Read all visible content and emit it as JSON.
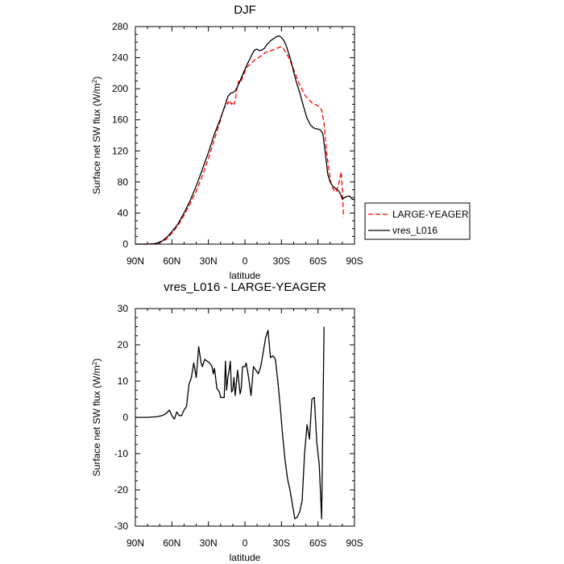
{
  "chart_data": [
    {
      "type": "line",
      "title": "DJF",
      "xlabel": "latitude",
      "ylabel_main": "Surface net SW flux (W/m",
      "ylabel_sup": "2",
      "ylabel_end": ")",
      "xlim": [
        -90,
        90
      ],
      "ylim": [
        0,
        280
      ],
      "x_ticks": [
        {
          "value": -90,
          "label": "90N"
        },
        {
          "value": -60,
          "label": "60N"
        },
        {
          "value": -30,
          "label": "30N"
        },
        {
          "value": 0,
          "label": "0"
        },
        {
          "value": 30,
          "label": "30S"
        },
        {
          "value": 60,
          "label": "60S"
        },
        {
          "value": 90,
          "label": "90S"
        }
      ],
      "y_ticks": [
        0,
        40,
        80,
        120,
        160,
        200,
        240,
        280
      ],
      "legend_position": "outside-right",
      "series": [
        {
          "name": "LARGE-YEAGER",
          "color": "#ff0000",
          "dash": true,
          "points": [
            [
              -90,
              0
            ],
            [
              -80,
              0
            ],
            [
              -75,
              0.5
            ],
            [
              -72,
              1
            ],
            [
              -68,
              3
            ],
            [
              -64,
              7
            ],
            [
              -60,
              14
            ],
            [
              -55,
              24
            ],
            [
              -50,
              37
            ],
            [
              -45,
              52
            ],
            [
              -40,
              68
            ],
            [
              -35,
              88
            ],
            [
              -30,
              110
            ],
            [
              -25,
              135
            ],
            [
              -20,
              160
            ],
            [
              -18,
              172
            ],
            [
              -16,
              178
            ],
            [
              -15,
              186
            ],
            [
              -14,
              180
            ],
            [
              -13,
              185
            ],
            [
              -12,
              183
            ],
            [
              -11,
              180
            ],
            [
              -10,
              183
            ],
            [
              -9,
              180
            ],
            [
              -8,
              184
            ],
            [
              -7,
              195
            ],
            [
              -6,
              205
            ],
            [
              -5,
              210
            ],
            [
              -4,
              208
            ],
            [
              -3,
              210
            ],
            [
              -2,
              215
            ],
            [
              0,
              222
            ],
            [
              2,
              228
            ],
            [
              5,
              233
            ],
            [
              8,
              237
            ],
            [
              11,
              240
            ],
            [
              14,
              243
            ],
            [
              17,
              247
            ],
            [
              20,
              248
            ],
            [
              23,
              250
            ],
            [
              26,
              252
            ],
            [
              29,
              254
            ],
            [
              31,
              253
            ],
            [
              33,
              248
            ],
            [
              36,
              240
            ],
            [
              40,
              225
            ],
            [
              45,
              205
            ],
            [
              50,
              190
            ],
            [
              55,
              182
            ],
            [
              60,
              178
            ],
            [
              63,
              173
            ],
            [
              65,
              155
            ],
            [
              67,
              120
            ],
            [
              69,
              95
            ],
            [
              71,
              75
            ],
            [
              73,
              70
            ],
            [
              75,
              67
            ],
            [
              77,
              77
            ],
            [
              79,
              93
            ],
            [
              80,
              70
            ],
            [
              81,
              35
            ]
          ]
        },
        {
          "name": "vres_L016",
          "color": "#000000",
          "dash": false,
          "points": [
            [
              -90,
              0
            ],
            [
              -80,
              0
            ],
            [
              -75,
              0.5
            ],
            [
              -72,
              1.5
            ],
            [
              -68,
              4
            ],
            [
              -64,
              9
            ],
            [
              -60,
              16
            ],
            [
              -55,
              26
            ],
            [
              -50,
              40
            ],
            [
              -45,
              56
            ],
            [
              -40,
              75
            ],
            [
              -35,
              96
            ],
            [
              -30,
              118
            ],
            [
              -25,
              142
            ],
            [
              -20,
              162
            ],
            [
              -16,
              180
            ],
            [
              -14,
              190
            ],
            [
              -12,
              194
            ],
            [
              -10,
              195
            ],
            [
              -8,
              197
            ],
            [
              -6,
              203
            ],
            [
              -4,
              210
            ],
            [
              -2,
              218
            ],
            [
              0,
              225
            ],
            [
              2,
              232
            ],
            [
              4,
              238
            ],
            [
              6,
              245
            ],
            [
              8,
              250
            ],
            [
              10,
              251
            ],
            [
              12,
              249
            ],
            [
              14,
              250
            ],
            [
              16,
              252
            ],
            [
              18,
              257
            ],
            [
              20,
              260
            ],
            [
              22,
              263
            ],
            [
              24,
              265
            ],
            [
              26,
              267
            ],
            [
              28,
              268
            ],
            [
              30,
              266
            ],
            [
              32,
              262
            ],
            [
              34,
              255
            ],
            [
              36,
              245
            ],
            [
              38,
              235
            ],
            [
              40,
              222
            ],
            [
              42,
              210
            ],
            [
              45,
              195
            ],
            [
              48,
              178
            ],
            [
              51,
              162
            ],
            [
              54,
              153
            ],
            [
              57,
              149
            ],
            [
              60,
              148
            ],
            [
              62,
              147
            ],
            [
              64,
              142
            ],
            [
              66,
              118
            ],
            [
              68,
              90
            ],
            [
              70,
              80
            ],
            [
              72,
              75
            ],
            [
              74,
              72
            ],
            [
              76,
              70
            ],
            [
              78,
              66
            ],
            [
              80,
              58
            ],
            [
              83,
              61
            ],
            [
              86,
              62
            ],
            [
              88,
              58
            ],
            [
              90,
              57
            ]
          ]
        }
      ]
    },
    {
      "type": "line",
      "title": "vres_L016 - LARGE-YEAGER",
      "xlabel": "latitude",
      "ylabel_main": "Surface net SW flux (W/m",
      "ylabel_sup": "2",
      "ylabel_end": ")",
      "xlim": [
        -90,
        90
      ],
      "ylim": [
        -30,
        30
      ],
      "x_ticks": [
        {
          "value": -90,
          "label": "90N"
        },
        {
          "value": -60,
          "label": "60N"
        },
        {
          "value": -30,
          "label": "30N"
        },
        {
          "value": 0,
          "label": "0"
        },
        {
          "value": 30,
          "label": "30S"
        },
        {
          "value": 60,
          "label": "60S"
        },
        {
          "value": 90,
          "label": "90S"
        }
      ],
      "y_ticks": [
        -30,
        -20,
        -10,
        0,
        10,
        20,
        30
      ],
      "series": [
        {
          "name": "vres_L016 - LARGE-YEAGER",
          "color": "#000000",
          "dash": false,
          "points": [
            [
              -90,
              0
            ],
            [
              -80,
              0
            ],
            [
              -72,
              0.2
            ],
            [
              -68,
              0.5
            ],
            [
              -65,
              1
            ],
            [
              -62,
              2
            ],
            [
              -60,
              0.5
            ],
            [
              -58,
              -0.5
            ],
            [
              -56,
              1.5
            ],
            [
              -54,
              0.5
            ],
            [
              -52,
              0.5
            ],
            [
              -50,
              2
            ],
            [
              -48,
              3
            ],
            [
              -46,
              9
            ],
            [
              -44,
              11
            ],
            [
              -42,
              15
            ],
            [
              -40,
              11
            ],
            [
              -38,
              19.5
            ],
            [
              -36,
              15
            ],
            [
              -35,
              14
            ],
            [
              -33,
              16
            ],
            [
              -31,
              15.5
            ],
            [
              -29,
              15
            ],
            [
              -27,
              14
            ],
            [
              -26,
              12
            ],
            [
              -25,
              13.5
            ],
            [
              -23,
              8
            ],
            [
              -21,
              7
            ],
            [
              -20,
              5.5
            ],
            [
              -18,
              5.5
            ],
            [
              -17,
              5.5
            ],
            [
              -16,
              15.5
            ],
            [
              -15,
              7.5
            ],
            [
              -14,
              11
            ],
            [
              -13,
              13
            ],
            [
              -12,
              15.5
            ],
            [
              -11,
              7
            ],
            [
              -10,
              7.5
            ],
            [
              -9,
              11
            ],
            [
              -8,
              6
            ],
            [
              -6,
              13
            ],
            [
              -4,
              6.5
            ],
            [
              -3,
              8
            ],
            [
              -2,
              14
            ],
            [
              0,
              14
            ],
            [
              1,
              15
            ],
            [
              3,
              11
            ],
            [
              5,
              6
            ],
            [
              7,
              14
            ],
            [
              9,
              13
            ],
            [
              11,
              12
            ],
            [
              13,
              14
            ],
            [
              15,
              18
            ],
            [
              17,
              22
            ],
            [
              19,
              24
            ],
            [
              21,
              16.5
            ],
            [
              23,
              17
            ],
            [
              25,
              16
            ],
            [
              27,
              10
            ],
            [
              29,
              3
            ],
            [
              31,
              -5
            ],
            [
              33,
              -12
            ],
            [
              35,
              -17
            ],
            [
              37,
              -20
            ],
            [
              39,
              -24
            ],
            [
              41,
              -28
            ],
            [
              43,
              -27.5
            ],
            [
              45,
              -26
            ],
            [
              47,
              -23
            ],
            [
              49,
              -10
            ],
            [
              51,
              -2
            ],
            [
              53,
              -6
            ],
            [
              55,
              5
            ],
            [
              57,
              5.5
            ],
            [
              59,
              -7
            ],
            [
              61,
              -13
            ],
            [
              63,
              -28
            ],
            [
              65,
              25
            ]
          ]
        }
      ]
    }
  ]
}
